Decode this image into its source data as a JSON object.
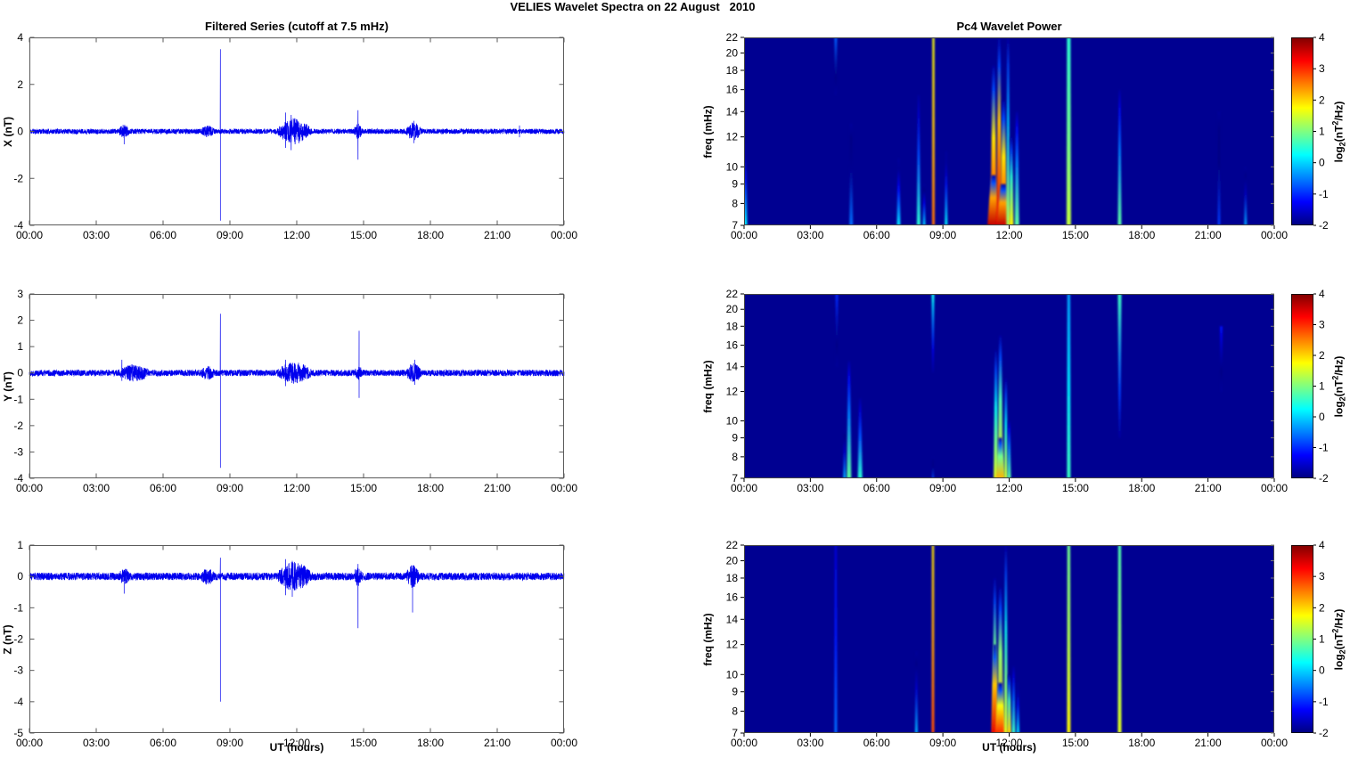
{
  "figure": {
    "title": "VELIES Wavelet Spectra on 22 August   2010",
    "left_column_title": "Filtered Series (cutoff at 7.5 mHz)",
    "right_column_title": "Pc4 Wavelet Power",
    "x_label": "UT (hours)",
    "colorbar_label": {
      "pre": "log",
      "sub": "2",
      "mid": "(nT",
      "sup": "2",
      "post": "/Hz)"
    }
  },
  "axes": {
    "x_ticks": [
      "00:00",
      "03:00",
      "06:00",
      "09:00",
      "12:00",
      "15:00",
      "18:00",
      "21:00",
      "00:00"
    ],
    "x_tick_hours": [
      0,
      3,
      6,
      9,
      12,
      15,
      18,
      21,
      24
    ],
    "x_range_hours": [
      0,
      24
    ],
    "colorbar_ticks": [
      4,
      3,
      2,
      1,
      0,
      -1,
      -2
    ],
    "colorbar_range": [
      -2,
      4
    ],
    "colormap": "jet",
    "grid": false
  },
  "chart_data": [
    {
      "type": "line",
      "title": "Filtered Series (cutoff at 7.5 mHz)",
      "component": "X",
      "ylabel": "X (nT)",
      "xlabel": "UT (hours)",
      "ylim": [
        -4,
        4
      ],
      "yticks": [
        4,
        2,
        0,
        -2,
        -4
      ],
      "xlim_hours": [
        0,
        24
      ],
      "line_color": "#0000EE",
      "noise_amp": 0.11,
      "seed": 11,
      "bursts": [
        {
          "t0": 4.0,
          "t1": 4.5,
          "amp": 0.18
        },
        {
          "t0": 7.7,
          "t1": 8.3,
          "amp": 0.15
        },
        {
          "t0": 11.1,
          "t1": 12.7,
          "amp": 0.45
        },
        {
          "t0": 14.55,
          "t1": 14.95,
          "amp": 0.22
        },
        {
          "t0": 16.9,
          "t1": 17.6,
          "amp": 0.28
        }
      ],
      "spikes": [
        {
          "t": 4.25,
          "top": 0.2,
          "bottom": -0.55
        },
        {
          "t": 8.57,
          "top": 3.5,
          "bottom": -3.8
        },
        {
          "t": 11.5,
          "top": 0.8,
          "bottom": -0.7
        },
        {
          "t": 11.75,
          "top": 0.7,
          "bottom": -0.8
        },
        {
          "t": 14.75,
          "top": 0.9,
          "bottom": -1.2
        },
        {
          "t": 17.25,
          "top": 0.45,
          "bottom": -0.5
        },
        {
          "t": 22.0,
          "top": 0.25,
          "bottom": -0.25
        }
      ]
    },
    {
      "type": "line",
      "component": "Y",
      "ylabel": "Y (nT)",
      "xlabel": "UT (hours)",
      "ylim": [
        -4,
        3
      ],
      "yticks": [
        3,
        2,
        1,
        0,
        -1,
        -2,
        -3,
        -4
      ],
      "xlim_hours": [
        0,
        24
      ],
      "line_color": "#0000EE",
      "noise_amp": 0.12,
      "seed": 22,
      "bursts": [
        {
          "t0": 4.0,
          "t1": 5.4,
          "amp": 0.22
        },
        {
          "t0": 7.7,
          "t1": 8.3,
          "amp": 0.15
        },
        {
          "t0": 11.1,
          "t1": 12.7,
          "amp": 0.3
        },
        {
          "t0": 14.6,
          "t1": 14.95,
          "amp": 0.15
        },
        {
          "t0": 16.9,
          "t1": 17.6,
          "amp": 0.25
        }
      ],
      "spikes": [
        {
          "t": 4.15,
          "top": 0.5,
          "bottom": -0.3
        },
        {
          "t": 8.57,
          "top": 2.25,
          "bottom": -3.6
        },
        {
          "t": 11.5,
          "top": 0.5,
          "bottom": -0.5
        },
        {
          "t": 14.8,
          "top": 1.6,
          "bottom": -0.95
        },
        {
          "t": 17.3,
          "top": 0.5,
          "bottom": -0.45
        }
      ]
    },
    {
      "type": "line",
      "component": "Z",
      "ylabel": "Z (nT)",
      "xlabel": "UT (hours)",
      "ylim": [
        -5,
        1
      ],
      "yticks": [
        1,
        0,
        -1,
        -2,
        -3,
        -4,
        -5
      ],
      "xlim_hours": [
        0,
        24
      ],
      "line_color": "#0000EE",
      "noise_amp": 0.12,
      "seed": 33,
      "bursts": [
        {
          "t0": 4.0,
          "t1": 4.5,
          "amp": 0.15
        },
        {
          "t0": 7.7,
          "t1": 8.3,
          "amp": 0.15
        },
        {
          "t0": 11.1,
          "t1": 12.7,
          "amp": 0.35
        },
        {
          "t0": 14.55,
          "t1": 14.95,
          "amp": 0.2
        },
        {
          "t0": 16.9,
          "t1": 17.5,
          "amp": 0.25
        }
      ],
      "spikes": [
        {
          "t": 4.25,
          "top": 0.2,
          "bottom": -0.55
        },
        {
          "t": 8.57,
          "top": 0.6,
          "bottom": -4.0
        },
        {
          "t": 11.5,
          "top": 0.55,
          "bottom": -0.6
        },
        {
          "t": 11.8,
          "top": 0.5,
          "bottom": -0.65
        },
        {
          "t": 14.75,
          "top": 0.4,
          "bottom": -1.65
        },
        {
          "t": 17.2,
          "top": 0.35,
          "bottom": -1.15
        }
      ]
    },
    {
      "type": "heatmap",
      "title": "Pc4 Wavelet Power",
      "component": "X",
      "ylabel": "freq (mHz)",
      "xlabel": "UT (hours)",
      "ylim_mhz": [
        7,
        22
      ],
      "yscale": "log",
      "yticks": [
        22,
        20,
        18,
        16,
        14,
        12,
        10,
        9,
        8,
        7
      ],
      "value_units": "log2(nT^2/Hz)",
      "value_range": [
        -2,
        4
      ],
      "background_value": -1.9,
      "streaks": [
        {
          "t": 0.06,
          "f_lo": 7,
          "f_hi": 11.5,
          "peak": 0.2,
          "w": 4,
          "fade": "down"
        },
        {
          "t": 4.15,
          "f_lo": 15.5,
          "f_hi": 22,
          "peak": -0.7,
          "w": 3,
          "fade": "up"
        },
        {
          "t": 4.85,
          "f_lo": 7,
          "f_hi": 13,
          "peak": -0.6,
          "w": 4,
          "fade": "down"
        },
        {
          "t": 7.0,
          "f_lo": 7,
          "f_hi": 10.5,
          "peak": 0.1,
          "w": 4,
          "fade": "down"
        },
        {
          "t": 7.9,
          "f_lo": 7,
          "f_hi": 15.5,
          "peak": 0.5,
          "w": 4,
          "fade": "down"
        },
        {
          "t": 8.15,
          "f_lo": 7,
          "f_hi": 9,
          "peak": 0.0,
          "w": 3,
          "fade": "down"
        },
        {
          "t": 8.57,
          "f_lo": 7,
          "f_hi": 22,
          "peak": 2.6,
          "w": 3,
          "fade": "uniform"
        },
        {
          "t": 9.15,
          "f_lo": 7,
          "f_hi": 11,
          "peak": 0.2,
          "w": 3,
          "fade": "down"
        },
        {
          "t": 11.3,
          "f_lo": 7,
          "f_hi": 18.5,
          "peak": 3.2,
          "w": 7,
          "fade": "down"
        },
        {
          "t": 11.3,
          "f_lo": 7,
          "f_hi": 9.5,
          "peak": 3.6,
          "w": 14,
          "fade": "down"
        },
        {
          "t": 11.55,
          "f_lo": 7,
          "f_hi": 22,
          "peak": 3.4,
          "w": 6,
          "fade": "down"
        },
        {
          "t": 11.75,
          "f_lo": 7,
          "f_hi": 15,
          "peak": 3.2,
          "w": 8,
          "fade": "down"
        },
        {
          "t": 11.75,
          "f_lo": 7,
          "f_hi": 9,
          "peak": 3.6,
          "w": 16,
          "fade": "down"
        },
        {
          "t": 11.95,
          "f_lo": 7,
          "f_hi": 22,
          "peak": 1.2,
          "w": 4,
          "fade": "down"
        },
        {
          "t": 12.1,
          "f_lo": 7,
          "f_hi": 12,
          "peak": 1.8,
          "w": 5,
          "fade": "down"
        },
        {
          "t": 12.35,
          "f_lo": 7,
          "f_hi": 14,
          "peak": 0.8,
          "w": 5,
          "fade": "down"
        },
        {
          "t": 14.7,
          "f_lo": 7,
          "f_hi": 22,
          "peak": 1.4,
          "w": 5,
          "fade": "uniform"
        },
        {
          "t": 17.0,
          "f_lo": 7,
          "f_hi": 16,
          "peak": 0.8,
          "w": 4,
          "fade": "down"
        },
        {
          "t": 21.5,
          "f_lo": 7,
          "f_hi": 14,
          "peak": -0.9,
          "w": 3,
          "fade": "down"
        },
        {
          "t": 22.7,
          "f_lo": 7,
          "f_hi": 10,
          "peak": -0.3,
          "w": 3,
          "fade": "down"
        }
      ]
    },
    {
      "type": "heatmap",
      "component": "Y",
      "ylabel": "freq (mHz)",
      "xlabel": "UT (hours)",
      "ylim_mhz": [
        7,
        22
      ],
      "yscale": "log",
      "yticks": [
        22,
        20,
        18,
        16,
        14,
        12,
        10,
        9,
        8,
        7
      ],
      "value_units": "log2(nT^2/Hz)",
      "value_range": [
        -2,
        4
      ],
      "background_value": -1.9,
      "streaks": [
        {
          "t": 4.2,
          "f_lo": 14,
          "f_hi": 22,
          "peak": -1.0,
          "w": 3,
          "fade": "up"
        },
        {
          "t": 4.55,
          "f_lo": 7,
          "f_hi": 9.5,
          "peak": -0.2,
          "w": 3,
          "fade": "down"
        },
        {
          "t": 4.75,
          "f_lo": 7,
          "f_hi": 14.5,
          "peak": 0.8,
          "w": 5,
          "fade": "down"
        },
        {
          "t": 5.25,
          "f_lo": 7,
          "f_hi": 11.5,
          "peak": 0.5,
          "w": 5,
          "fade": "down"
        },
        {
          "t": 8.55,
          "f_lo": 13.5,
          "f_hi": 22,
          "peak": 0.3,
          "w": 3,
          "fade": "up"
        },
        {
          "t": 8.55,
          "f_lo": 7,
          "f_hi": 8,
          "peak": -0.8,
          "w": 2,
          "fade": "down"
        },
        {
          "t": 11.4,
          "f_lo": 7,
          "f_hi": 15.5,
          "peak": 1.6,
          "w": 5,
          "fade": "down"
        },
        {
          "t": 11.6,
          "f_lo": 7,
          "f_hi": 17,
          "peak": 2.0,
          "w": 6,
          "fade": "down"
        },
        {
          "t": 11.6,
          "f_lo": 7,
          "f_hi": 9,
          "peak": 2.2,
          "w": 10,
          "fade": "down"
        },
        {
          "t": 11.85,
          "f_lo": 7,
          "f_hi": 13,
          "peak": 1.5,
          "w": 4,
          "fade": "down"
        },
        {
          "t": 12.0,
          "f_lo": 7,
          "f_hi": 10,
          "peak": 0.8,
          "w": 4,
          "fade": "down"
        },
        {
          "t": 14.7,
          "f_lo": 7,
          "f_hi": 22,
          "peak": 0.6,
          "w": 4,
          "fade": "uniform"
        },
        {
          "t": 17.0,
          "f_lo": 9,
          "f_hi": 22,
          "peak": 0.6,
          "w": 4,
          "fade": "up"
        },
        {
          "t": 21.6,
          "f_lo": 12,
          "f_hi": 18,
          "peak": -1.2,
          "w": 3,
          "fade": "up"
        }
      ]
    },
    {
      "type": "heatmap",
      "component": "Z",
      "ylabel": "freq (mHz)",
      "xlabel": "UT (hours)",
      "ylim_mhz": [
        7,
        22
      ],
      "yscale": "log",
      "yticks": [
        22,
        20,
        18,
        16,
        14,
        12,
        10,
        9,
        8,
        7
      ],
      "value_units": "log2(nT^2/Hz)",
      "value_range": [
        -2,
        4
      ],
      "background_value": -1.9,
      "streaks": [
        {
          "t": 4.15,
          "f_lo": 7,
          "f_hi": 22,
          "peak": -0.6,
          "w": 3,
          "fade": "uniform"
        },
        {
          "t": 7.8,
          "f_lo": 7,
          "f_hi": 11.5,
          "peak": -0.2,
          "w": 3,
          "fade": "down"
        },
        {
          "t": 8.55,
          "f_lo": 7,
          "f_hi": 22,
          "peak": 2.8,
          "w": 3,
          "fade": "uniform"
        },
        {
          "t": 11.35,
          "f_lo": 7,
          "f_hi": 18,
          "peak": 2.2,
          "w": 5,
          "fade": "down"
        },
        {
          "t": 11.35,
          "f_lo": 7,
          "f_hi": 12,
          "peak": 3.4,
          "w": 8,
          "fade": "down"
        },
        {
          "t": 11.6,
          "f_lo": 7,
          "f_hi": 17,
          "peak": 2.4,
          "w": 7,
          "fade": "down"
        },
        {
          "t": 11.6,
          "f_lo": 7,
          "f_hi": 9.5,
          "peak": 3.0,
          "w": 12,
          "fade": "down"
        },
        {
          "t": 11.85,
          "f_lo": 7,
          "f_hi": 22,
          "peak": 1.6,
          "w": 4,
          "fade": "down"
        },
        {
          "t": 12.0,
          "f_lo": 7,
          "f_hi": 10,
          "peak": 2.0,
          "w": 5,
          "fade": "down"
        },
        {
          "t": 12.2,
          "f_lo": 7,
          "f_hi": 10.5,
          "peak": 0.6,
          "w": 4,
          "fade": "down"
        },
        {
          "t": 12.4,
          "f_lo": 7,
          "f_hi": 9.5,
          "peak": 0.2,
          "w": 3,
          "fade": "down"
        },
        {
          "t": 14.7,
          "f_lo": 7,
          "f_hi": 22,
          "peak": 1.8,
          "w": 4,
          "fade": "uniform"
        },
        {
          "t": 17.0,
          "f_lo": 7,
          "f_hi": 22,
          "peak": 1.6,
          "w": 4,
          "fade": "uniform"
        }
      ]
    }
  ]
}
